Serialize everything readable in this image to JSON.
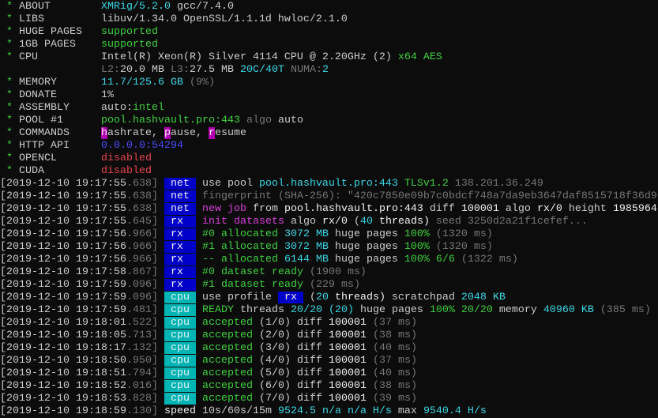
{
  "colors": {
    "background": "#0c0c0c",
    "net_tag": "#0000c8",
    "rx_tag": "#0000c8",
    "cpu_tag": "#00b4b4",
    "green": "#3fd13f",
    "cyan": "#3ad7e6",
    "magenta": "#d93fd9",
    "red": "#e8454f",
    "dim": "#767676"
  },
  "header": [
    {
      "label": "ABOUT",
      "value": [
        [
          "XMRig/5.2.0",
          "c"
        ],
        [
          " gcc/7.4.0",
          "w"
        ]
      ]
    },
    {
      "label": "LIBS",
      "value": [
        [
          "libuv/1.34.0 OpenSSL/1.1.1d hwloc/2.1.0",
          "w"
        ]
      ]
    },
    {
      "label": "HUGE PAGES",
      "value": [
        [
          "supported",
          "g"
        ]
      ]
    },
    {
      "label": "1GB PAGES",
      "value": [
        [
          "supported",
          "g"
        ]
      ]
    },
    {
      "label": "CPU",
      "value": [
        [
          "Intel(R) Xeon(R) Silver 4114 CPU @ 2.20GHz (2)",
          "w"
        ],
        [
          " x64 AES",
          "g"
        ]
      ]
    },
    {
      "label": "",
      "value": [
        [
          "L2:",
          "d"
        ],
        [
          "20.0 MB",
          "w"
        ],
        [
          " L3:",
          "d"
        ],
        [
          "27.5 MB",
          "w"
        ],
        [
          " 20C/40T",
          "c"
        ],
        [
          " NUMA:",
          "d"
        ],
        [
          "2",
          "c"
        ]
      ]
    },
    {
      "label": "MEMORY",
      "value": [
        [
          "11.7/125.6 GB",
          "c"
        ],
        [
          " (9%)",
          "d"
        ]
      ]
    },
    {
      "label": "DONATE",
      "value": [
        [
          "1%",
          "w"
        ]
      ]
    },
    {
      "label": "ASSEMBLY",
      "value": [
        [
          "auto:",
          "w"
        ],
        [
          "intel",
          "g"
        ]
      ]
    },
    {
      "label": "POOL #1",
      "value": [
        [
          "pool.hashvault.pro:443",
          "g"
        ],
        [
          " algo",
          "d"
        ],
        [
          " auto",
          "w"
        ]
      ]
    },
    {
      "label": "COMMANDS",
      "value": [
        [
          "h",
          "hl"
        ],
        [
          "ashrate, ",
          "w"
        ],
        [
          "p",
          "hl"
        ],
        [
          "ause, ",
          "w"
        ],
        [
          "r",
          "hl"
        ],
        [
          "esume",
          "w"
        ]
      ]
    },
    {
      "label": "HTTP API",
      "value": [
        [
          "0.0.0.0:54294",
          "bl"
        ]
      ]
    },
    {
      "label": "OPENCL",
      "value": [
        [
          "disabled",
          "r"
        ]
      ]
    },
    {
      "label": "CUDA",
      "value": [
        [
          "disabled",
          "r"
        ]
      ]
    }
  ],
  "log": [
    {
      "ts": "2019-12-10 19:17:55",
      "ms": ".638",
      "tag": "net",
      "msg": [
        [
          "use pool ",
          "w"
        ],
        [
          "pool.hashvault.pro:443 ",
          "c"
        ],
        [
          "TLSv1.2",
          "g"
        ],
        [
          " 138.201.36.249",
          "d"
        ]
      ]
    },
    {
      "ts": "2019-12-10 19:17:55",
      "ms": ".638",
      "tag": "net",
      "msg": [
        [
          "fingerprint (SHA-256): \"420c7850e09b7c0bdcf748a7da9eb3647daf8515718f36d9",
          "d"
        ]
      ]
    },
    {
      "ts": "2019-12-10 19:17:55",
      "ms": ".638",
      "tag": "net",
      "msg": [
        [
          "new job",
          "m"
        ],
        [
          " from ",
          "w"
        ],
        [
          "pool.hashvault.pro:443",
          "b"
        ],
        [
          " diff ",
          "w"
        ],
        [
          "100001",
          "b"
        ],
        [
          " algo ",
          "w"
        ],
        [
          "rx/0",
          "b"
        ],
        [
          " height ",
          "w"
        ],
        [
          "1985964",
          "b"
        ]
      ]
    },
    {
      "ts": "2019-12-10 19:17:55",
      "ms": ".645",
      "tag": "rx",
      "msg": [
        [
          "init datasets",
          "m"
        ],
        [
          " algo ",
          "w"
        ],
        [
          "rx/0",
          "b"
        ],
        [
          " (",
          "w"
        ],
        [
          "40",
          "c"
        ],
        [
          " threads)",
          "b"
        ],
        [
          " seed 3250d2a21f1cefef...",
          "d"
        ]
      ]
    },
    {
      "ts": "2019-12-10 19:17:56",
      "ms": ".966",
      "tag": "rx",
      "msg": [
        [
          "#0 allocated",
          "g"
        ],
        [
          " 3072 MB",
          "c"
        ],
        [
          " huge pages",
          "w"
        ],
        [
          " 100%",
          "g"
        ],
        [
          " (1320 ms)",
          "d"
        ]
      ]
    },
    {
      "ts": "2019-12-10 19:17:56",
      "ms": ".966",
      "tag": "rx",
      "msg": [
        [
          "#1 allocated",
          "g"
        ],
        [
          " 3072 MB",
          "c"
        ],
        [
          " huge pages",
          "w"
        ],
        [
          " 100%",
          "g"
        ],
        [
          " (1320 ms)",
          "d"
        ]
      ]
    },
    {
      "ts": "2019-12-10 19:17:56",
      "ms": ".966",
      "tag": "rx",
      "msg": [
        [
          "-- allocated",
          "g"
        ],
        [
          " 6144 MB",
          "c"
        ],
        [
          " huge pages",
          "w"
        ],
        [
          " 100% 6/6",
          "g"
        ],
        [
          " (1322 ms)",
          "d"
        ]
      ]
    },
    {
      "ts": "2019-12-10 19:17:58",
      "ms": ".867",
      "tag": "rx",
      "msg": [
        [
          "#0 dataset ready",
          "g"
        ],
        [
          " (1900 ms)",
          "d"
        ]
      ]
    },
    {
      "ts": "2019-12-10 19:17:59",
      "ms": ".096",
      "tag": "rx",
      "msg": [
        [
          "#1 dataset ready",
          "g"
        ],
        [
          " (229 ms)",
          "d"
        ]
      ]
    },
    {
      "ts": "2019-12-10 19:17:59",
      "ms": ".096",
      "tag": "cpu",
      "msg": [
        [
          "use profile ",
          "w"
        ],
        [
          " rx ",
          "tag-blue"
        ],
        [
          " (",
          "w"
        ],
        [
          "20",
          "c"
        ],
        [
          " threads)",
          "b"
        ],
        [
          " scratchpad ",
          "w"
        ],
        [
          "2048 KB",
          "c"
        ]
      ]
    },
    {
      "ts": "2019-12-10 19:17:59",
      "ms": ".481",
      "tag": "cpu",
      "msg": [
        [
          "READY",
          "g"
        ],
        [
          " threads ",
          "w"
        ],
        [
          "20/20",
          "c"
        ],
        [
          " (20)",
          "c"
        ],
        [
          " huge pages ",
          "w"
        ],
        [
          "100% 20/20",
          "g"
        ],
        [
          " memory ",
          "w"
        ],
        [
          "40960 KB",
          "c"
        ],
        [
          " (385 ms)",
          "d"
        ]
      ]
    },
    {
      "ts": "2019-12-10 19:18:01",
      "ms": ".522",
      "tag": "cpu",
      "msg": [
        [
          "accepted",
          "g"
        ],
        [
          " (1/0) diff ",
          "w"
        ],
        [
          "100001",
          "b"
        ],
        [
          " (37 ms)",
          "d"
        ]
      ]
    },
    {
      "ts": "2019-12-10 19:18:05",
      "ms": ".713",
      "tag": "cpu",
      "msg": [
        [
          "accepted",
          "g"
        ],
        [
          " (2/0) diff ",
          "w"
        ],
        [
          "100001",
          "b"
        ],
        [
          " (38 ms)",
          "d"
        ]
      ]
    },
    {
      "ts": "2019-12-10 19:18:17",
      "ms": ".132",
      "tag": "cpu",
      "msg": [
        [
          "accepted",
          "g"
        ],
        [
          " (3/0) diff ",
          "w"
        ],
        [
          "100001",
          "b"
        ],
        [
          " (40 ms)",
          "d"
        ]
      ]
    },
    {
      "ts": "2019-12-10 19:18:50",
      "ms": ".950",
      "tag": "cpu",
      "msg": [
        [
          "accepted",
          "g"
        ],
        [
          " (4/0) diff ",
          "w"
        ],
        [
          "100001",
          "b"
        ],
        [
          " (37 ms)",
          "d"
        ]
      ]
    },
    {
      "ts": "2019-12-10 19:18:51",
      "ms": ".794",
      "tag": "cpu",
      "msg": [
        [
          "accepted",
          "g"
        ],
        [
          " (5/0) diff ",
          "w"
        ],
        [
          "100001",
          "b"
        ],
        [
          " (40 ms)",
          "d"
        ]
      ]
    },
    {
      "ts": "2019-12-10 19:18:52",
      "ms": ".016",
      "tag": "cpu",
      "msg": [
        [
          "accepted",
          "g"
        ],
        [
          " (6/0) diff ",
          "w"
        ],
        [
          "100001",
          "b"
        ],
        [
          " (38 ms)",
          "d"
        ]
      ]
    },
    {
      "ts": "2019-12-10 19:18:53",
      "ms": ".828",
      "tag": "cpu",
      "msg": [
        [
          "accepted",
          "g"
        ],
        [
          " (7/0) diff ",
          "w"
        ],
        [
          "100001",
          "b"
        ],
        [
          " (39 ms)",
          "d"
        ]
      ]
    },
    {
      "ts": "2019-12-10 19:18:59",
      "ms": ".130",
      "tag": "",
      "msg": [
        [
          "speed",
          "b"
        ],
        [
          " 10s/60s/15m ",
          "w"
        ],
        [
          "9524.5",
          "c"
        ],
        [
          " n/a n/a H/s",
          "c"
        ],
        [
          " max ",
          "w"
        ],
        [
          "9540.4 H/s",
          "c"
        ]
      ]
    }
  ]
}
